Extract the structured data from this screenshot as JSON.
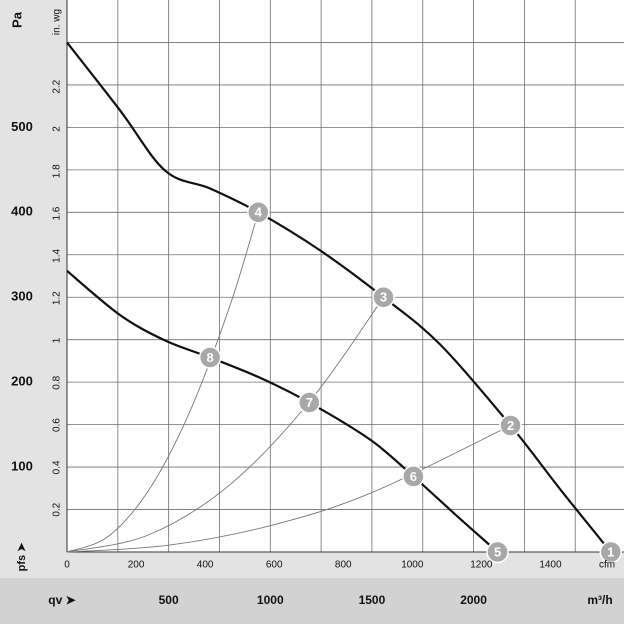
{
  "chart_data": {
    "type": "line",
    "y_label": "Pa",
    "y2_label": "in. wg",
    "x_label": "m³/h",
    "x2_label": "cfm",
    "y_axis_symbol": "pfs ➤",
    "x_axis_symbol": "qv ➤",
    "xlim": [
      0,
      2740
    ],
    "xticks": [
      500,
      1000,
      1500,
      2000
    ],
    "xminor": [
      250,
      750,
      1250,
      1750,
      2250,
      2500
    ],
    "x2lim": [
      0,
      1613
    ],
    "x2ticks": [
      0,
      200,
      400,
      600,
      800,
      1000,
      1200,
      1400
    ],
    "ylim": [
      0,
      650
    ],
    "yticks": [
      100,
      200,
      300,
      400,
      500
    ],
    "yminor": [
      50,
      150,
      250,
      350,
      450,
      550,
      600
    ],
    "y2lim": [
      0,
      2.61
    ],
    "y2ticks": [
      0.2,
      0.4,
      0.6,
      0.8,
      1,
      1.2,
      1.4,
      1.6,
      1.8,
      2,
      2.2
    ],
    "grid": true,
    "series": [
      {
        "kind": "fan",
        "color": "#111111",
        "x": [
          0,
          261,
          483,
          704,
          941,
          1246,
          1557,
          1837,
          2182,
          2429,
          2675
        ],
        "values": [
          600,
          520,
          449,
          428,
          400,
          355,
          300,
          244,
          149,
          73,
          0
        ]
      },
      {
        "kind": "fan",
        "color": "#111111",
        "x": [
          0,
          261,
          483,
          704,
          951,
          1192,
          1493,
          1704,
          1911,
          2118
        ],
        "values": [
          331,
          279,
          249,
          229,
          205,
          176,
          132,
          89,
          44,
          0
        ]
      },
      {
        "kind": "system",
        "color": "#777777",
        "x": [
          0,
          200,
          400,
          600,
          800,
          941
        ],
        "values": [
          0,
          18,
          72,
          163,
          289,
          400
        ]
      },
      {
        "kind": "system",
        "color": "#777777",
        "x": [
          0,
          400,
          800,
          1200,
          1557
        ],
        "values": [
          0,
          20,
          79,
          179,
          300
        ]
      },
      {
        "kind": "system",
        "color": "#777777",
        "x": [
          0,
          500,
          1000,
          1500,
          2182
        ],
        "values": [
          0,
          8,
          31,
          70,
          149
        ]
      }
    ],
    "points": {
      "color": "#a8a8a8",
      "labels": [
        "1",
        "2",
        "3",
        "4",
        "5",
        "6",
        "7",
        "8"
      ],
      "x": [
        2675,
        2182,
        1557,
        941,
        2118,
        1704,
        1192,
        704
      ],
      "values": [
        0,
        149,
        300,
        400,
        0,
        89,
        176,
        229
      ]
    }
  }
}
